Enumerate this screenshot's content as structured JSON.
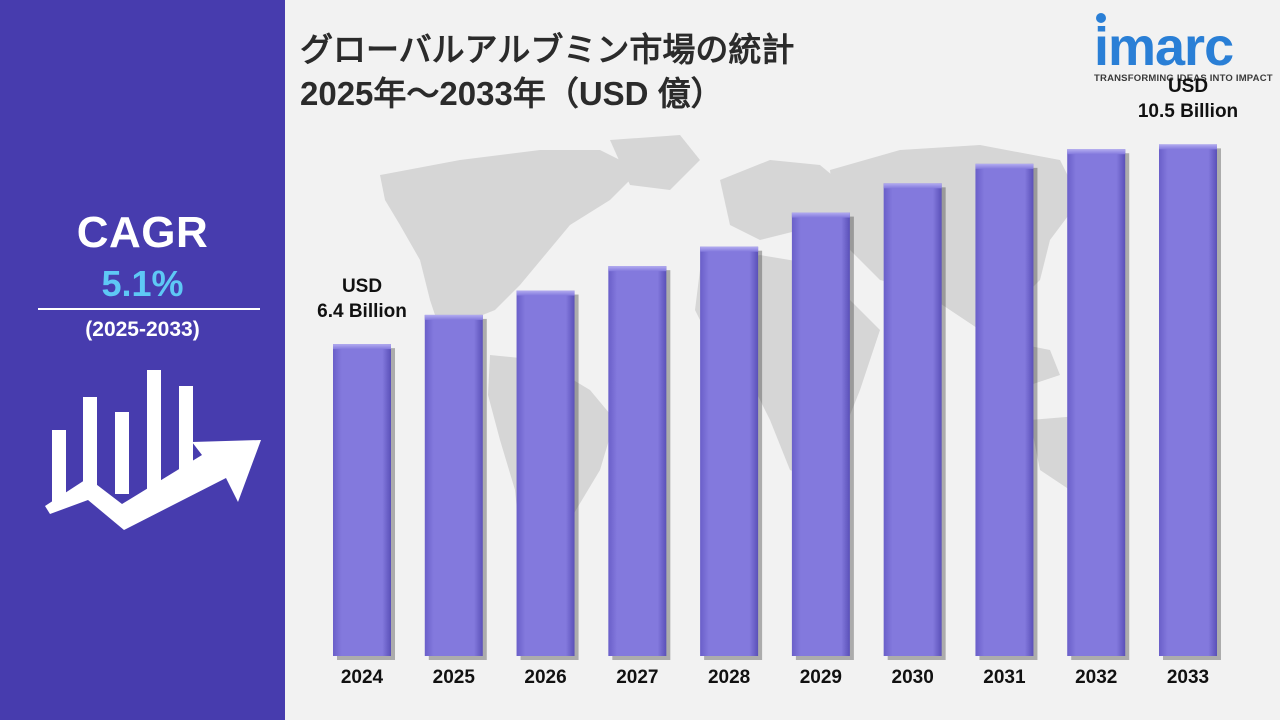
{
  "title": {
    "line1": "グローバルアルブミン市場の統計",
    "line2": "2025年～2033年（USD 億）"
  },
  "logo": {
    "text": "imarc",
    "tagline": "TRANSFORMING IDEAS INTO IMPACT",
    "color": "#2a7fd6"
  },
  "sidebar": {
    "cagr_label": "CAGR",
    "cagr_value": "5.1%",
    "period": "(2025-2033)",
    "icon": "growth-chart-arrow-icon",
    "background": "#473cae",
    "value_color": "#5ec8f5"
  },
  "callouts": {
    "start": {
      "line1": "USD",
      "line2": "6.4 Billion"
    },
    "end": {
      "line1": "USD",
      "line2": "10.5 Billion"
    }
  },
  "chart_data": {
    "type": "bar",
    "title": "グローバルアルブミン市場の統計 2025年～2033年（USD 億）",
    "categories": [
      "2024",
      "2025",
      "2026",
      "2027",
      "2028",
      "2029",
      "2030",
      "2031",
      "2032",
      "2033"
    ],
    "values": [
      6.4,
      7.0,
      7.5,
      8.0,
      8.4,
      9.1,
      9.7,
      10.1,
      10.4,
      10.5
    ],
    "ylim": [
      0,
      11
    ],
    "grid": false,
    "bar_color": "#7d72d8",
    "background_map": "world-map-icon"
  }
}
